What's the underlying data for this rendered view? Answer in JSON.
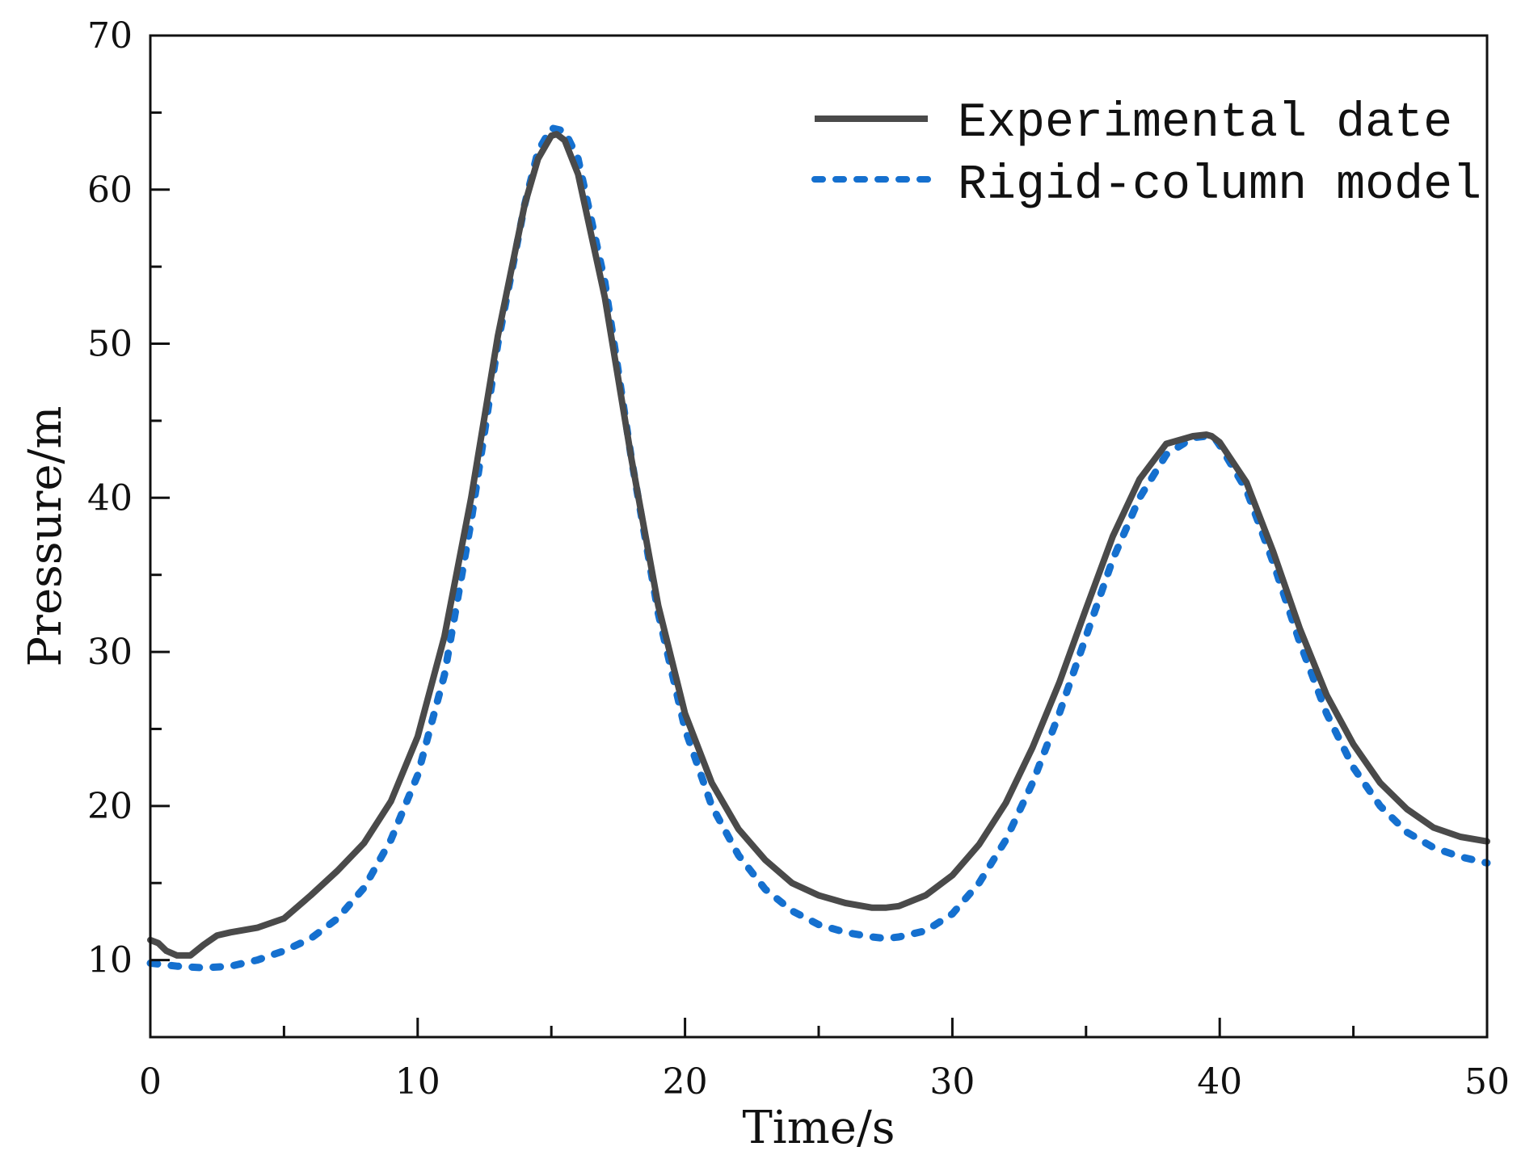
{
  "chart_data": {
    "type": "line",
    "title": "",
    "xlabel": "Time/s",
    "ylabel": "Pressure/m",
    "xlim": [
      0,
      50
    ],
    "ylim": [
      5,
      70
    ],
    "xticks": [
      0,
      10,
      20,
      30,
      40,
      50
    ],
    "yticks": [
      10,
      20,
      30,
      40,
      50,
      60,
      70
    ],
    "grid": false,
    "legend_position": "top-right",
    "series": [
      {
        "name": "Experimental date",
        "color": "#4a4a4a",
        "style": "solid",
        "x": [
          0,
          0.3,
          0.6,
          1.0,
          1.5,
          2.0,
          2.5,
          3,
          4,
          5,
          6,
          7,
          8,
          9,
          10,
          11,
          12,
          13,
          14,
          14.5,
          15,
          15.2,
          15.5,
          16,
          17,
          18,
          19,
          20,
          21,
          22,
          23,
          24,
          25,
          26,
          27,
          27.5,
          28,
          29,
          30,
          31,
          32,
          33,
          34,
          35,
          36,
          37,
          38,
          39,
          39.5,
          39.7,
          40,
          41,
          42,
          43,
          44,
          45,
          46,
          47,
          48,
          49,
          50
        ],
        "y": [
          11.3,
          11.1,
          10.6,
          10.3,
          10.3,
          11.0,
          11.6,
          11.8,
          12.1,
          12.7,
          14.2,
          15.8,
          17.6,
          20.3,
          24.5,
          31.0,
          40.0,
          50.5,
          59.0,
          62.0,
          63.5,
          63.6,
          63.2,
          61.0,
          53.0,
          42.5,
          33.0,
          26.0,
          21.5,
          18.5,
          16.5,
          15.0,
          14.2,
          13.7,
          13.4,
          13.4,
          13.5,
          14.2,
          15.5,
          17.5,
          20.2,
          23.8,
          28.0,
          32.8,
          37.5,
          41.2,
          43.5,
          44.0,
          44.1,
          44.0,
          43.6,
          41.0,
          36.5,
          31.5,
          27.2,
          24.0,
          21.5,
          19.8,
          18.6,
          18.0,
          17.7
        ]
      },
      {
        "name": "Rigid-column model",
        "color": "#1570cf",
        "style": "dotted",
        "x": [
          0,
          0.5,
          1,
          2,
          3,
          4,
          5,
          6,
          7,
          8,
          9,
          10,
          11,
          12,
          13,
          14,
          14.5,
          15,
          15.5,
          16,
          17,
          18,
          19,
          20,
          21,
          22,
          23,
          24,
          25,
          26,
          27,
          27.5,
          28,
          29,
          30,
          31,
          32,
          33,
          34,
          35,
          36,
          37,
          38,
          39,
          39.5,
          39.8,
          40,
          41,
          42,
          43,
          44,
          45,
          46,
          47,
          48,
          49,
          50
        ],
        "y": [
          9.8,
          9.7,
          9.6,
          9.5,
          9.6,
          10.0,
          10.6,
          11.4,
          12.7,
          14.7,
          17.8,
          22.0,
          28.5,
          38.5,
          50.0,
          59.0,
          62.5,
          64.0,
          63.8,
          62.0,
          54.0,
          42.5,
          32.5,
          25.0,
          20.0,
          16.8,
          14.6,
          13.2,
          12.3,
          11.8,
          11.5,
          11.4,
          11.5,
          11.9,
          13.0,
          15.0,
          17.8,
          21.5,
          26.0,
          31.0,
          36.0,
          40.0,
          42.8,
          43.9,
          44.0,
          43.9,
          43.4,
          40.5,
          35.8,
          30.6,
          26.0,
          22.5,
          20.0,
          18.3,
          17.3,
          16.7,
          16.3
        ]
      }
    ]
  }
}
